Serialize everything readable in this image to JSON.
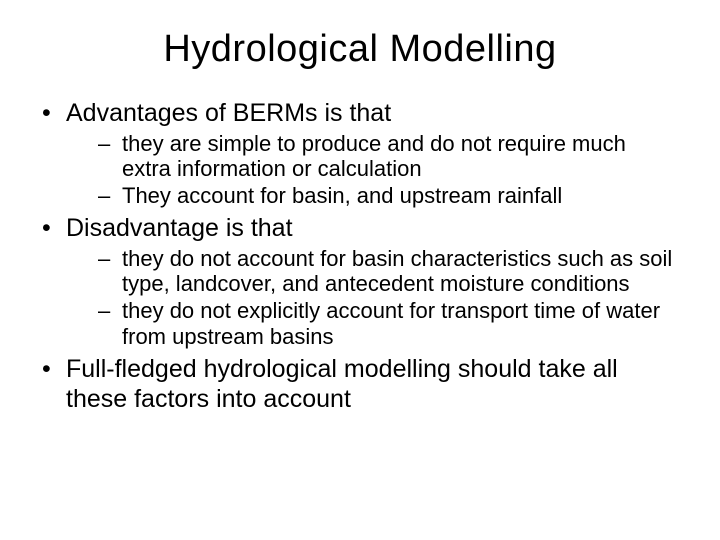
{
  "title": "Hydrological Modelling",
  "bullets": [
    {
      "text": "Advantages of BERMs is that",
      "sub": [
        "they are simple to produce and do not require much extra information or calculation",
        "They account for basin, and upstream rainfall"
      ]
    },
    {
      "text": "Disadvantage is that",
      "sub": [
        "they do not account for basin characteristics such as soil type, landcover, and antecedent moisture conditions",
        "they do not explicitly account for transport time of water from upstream basins"
      ]
    },
    {
      "text": "Full-fledged hydrological modelling should take all these factors into account",
      "sub": []
    }
  ],
  "colors": {
    "background": "#ffffff",
    "text": "#000000"
  },
  "typography": {
    "title_fontsize": 38,
    "level1_fontsize": 25,
    "level2_fontsize": 22,
    "font_family": "Arial"
  }
}
